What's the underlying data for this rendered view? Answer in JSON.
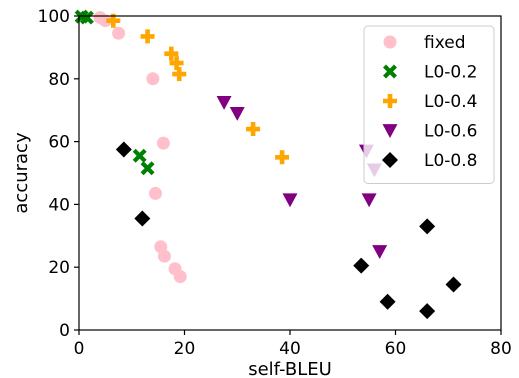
{
  "chart_data": {
    "type": "scatter",
    "xlabel": "self-BLEU",
    "ylabel": "accuracy",
    "xlim": [
      0,
      80
    ],
    "ylim": [
      0,
      100
    ],
    "xticks": [
      0,
      20,
      40,
      60,
      80
    ],
    "yticks": [
      0,
      20,
      40,
      60,
      80,
      100
    ],
    "grid": false,
    "legend_position": "top-right",
    "series": [
      {
        "name": "fixed",
        "marker": "circle",
        "color": "#ffc0cb",
        "points": [
          [
            4,
            99.5
          ],
          [
            5,
            98.5
          ],
          [
            7.5,
            94.5
          ],
          [
            14,
            80
          ],
          [
            16,
            59.5
          ],
          [
            14.5,
            43.5
          ],
          [
            15.5,
            26.5
          ],
          [
            16.2,
            23.5
          ],
          [
            18.2,
            19.5
          ],
          [
            19.2,
            17
          ]
        ]
      },
      {
        "name": "L0-0.2",
        "marker": "x",
        "color": "#008000",
        "points": [
          [
            0.5,
            99.8
          ],
          [
            1.5,
            99.5
          ],
          [
            11.5,
            55.5
          ],
          [
            13,
            51.5
          ]
        ]
      },
      {
        "name": "L0-0.4",
        "marker": "plus",
        "color": "#ffa500",
        "points": [
          [
            6.5,
            98.5
          ],
          [
            13,
            93.5
          ],
          [
            17.5,
            88
          ],
          [
            18.5,
            85
          ],
          [
            19,
            81.5
          ],
          [
            33,
            64
          ],
          [
            38.5,
            55
          ]
        ]
      },
      {
        "name": "L0-0.6",
        "marker": "triangle-down",
        "color": "#800080",
        "points": [
          [
            27.5,
            72.5
          ],
          [
            30,
            69
          ],
          [
            40,
            41.5
          ],
          [
            54.5,
            57
          ],
          [
            56,
            51
          ],
          [
            55,
            41.5
          ],
          [
            57,
            25
          ]
        ]
      },
      {
        "name": "L0-0.8",
        "marker": "diamond",
        "color": "#000000",
        "points": [
          [
            8.5,
            57.5
          ],
          [
            12,
            35.5
          ],
          [
            53.5,
            20.5
          ],
          [
            58.5,
            9
          ],
          [
            66,
            33
          ],
          [
            66,
            6
          ],
          [
            71,
            14.5
          ]
        ]
      }
    ]
  }
}
